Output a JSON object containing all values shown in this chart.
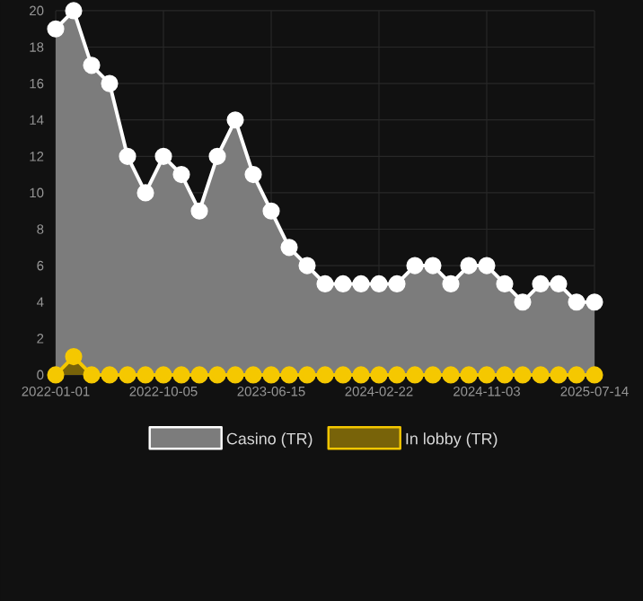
{
  "chart_data": {
    "type": "area",
    "categories": [
      "2022-01-01",
      null,
      null,
      null,
      null,
      null,
      "2022-10-05",
      null,
      null,
      null,
      null,
      null,
      "2023-06-15",
      null,
      null,
      null,
      null,
      null,
      "2024-02-22",
      null,
      null,
      null,
      null,
      null,
      "2024-11-03",
      null,
      null,
      null,
      null,
      null,
      "2025-07-14"
    ],
    "series": [
      {
        "name": "In lobby (TR)",
        "color": "#f5c800",
        "values": [
          0,
          1,
          0,
          0,
          0,
          0,
          0,
          0,
          0,
          0,
          0,
          0,
          0,
          0,
          0,
          0,
          0,
          0,
          0,
          0,
          0,
          0,
          0,
          0,
          0,
          0,
          0,
          0,
          0,
          0,
          0
        ]
      },
      {
        "name": "Casino (TR)",
        "color": "#ffffff",
        "values": [
          19,
          20,
          17,
          16,
          12,
          10,
          12,
          11,
          9,
          12,
          14,
          11,
          9,
          7,
          6,
          5,
          5,
          5,
          5,
          5,
          6,
          6,
          5,
          6,
          6,
          5,
          4,
          5,
          5,
          4,
          4
        ]
      }
    ],
    "ylim": [
      0,
      20
    ],
    "yticks": [
      0,
      2,
      4,
      6,
      8,
      10,
      12,
      14,
      16,
      18,
      20
    ],
    "grid": true,
    "legend": "bottom",
    "marker": "circle",
    "line_style": "solid"
  }
}
